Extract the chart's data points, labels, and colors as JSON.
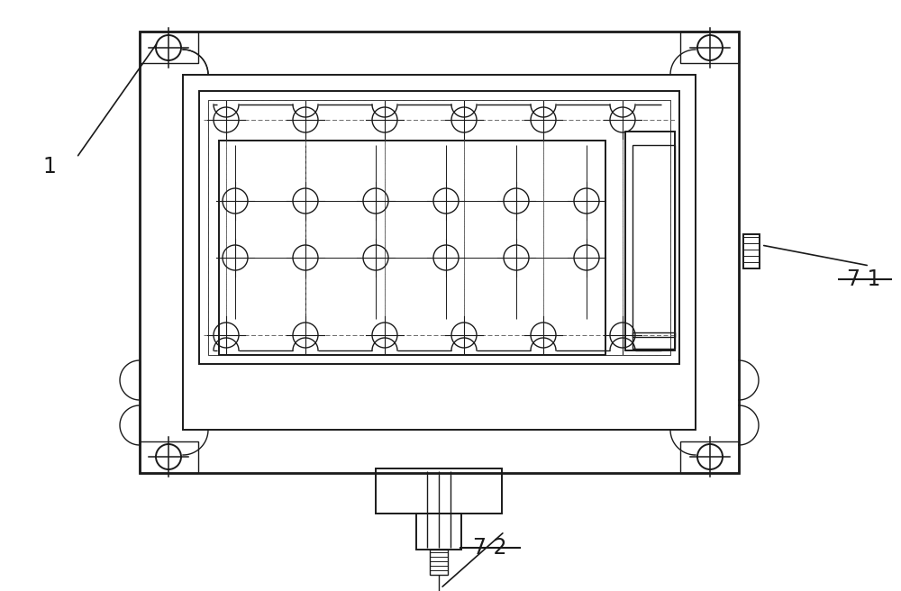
{
  "bg_color": "#ffffff",
  "lc": "#1a1a1a",
  "label_1": "1",
  "label_71": "7-1",
  "label_72": "7-2",
  "fig_width": 10.0,
  "fig_height": 6.56,
  "dpi": 100
}
